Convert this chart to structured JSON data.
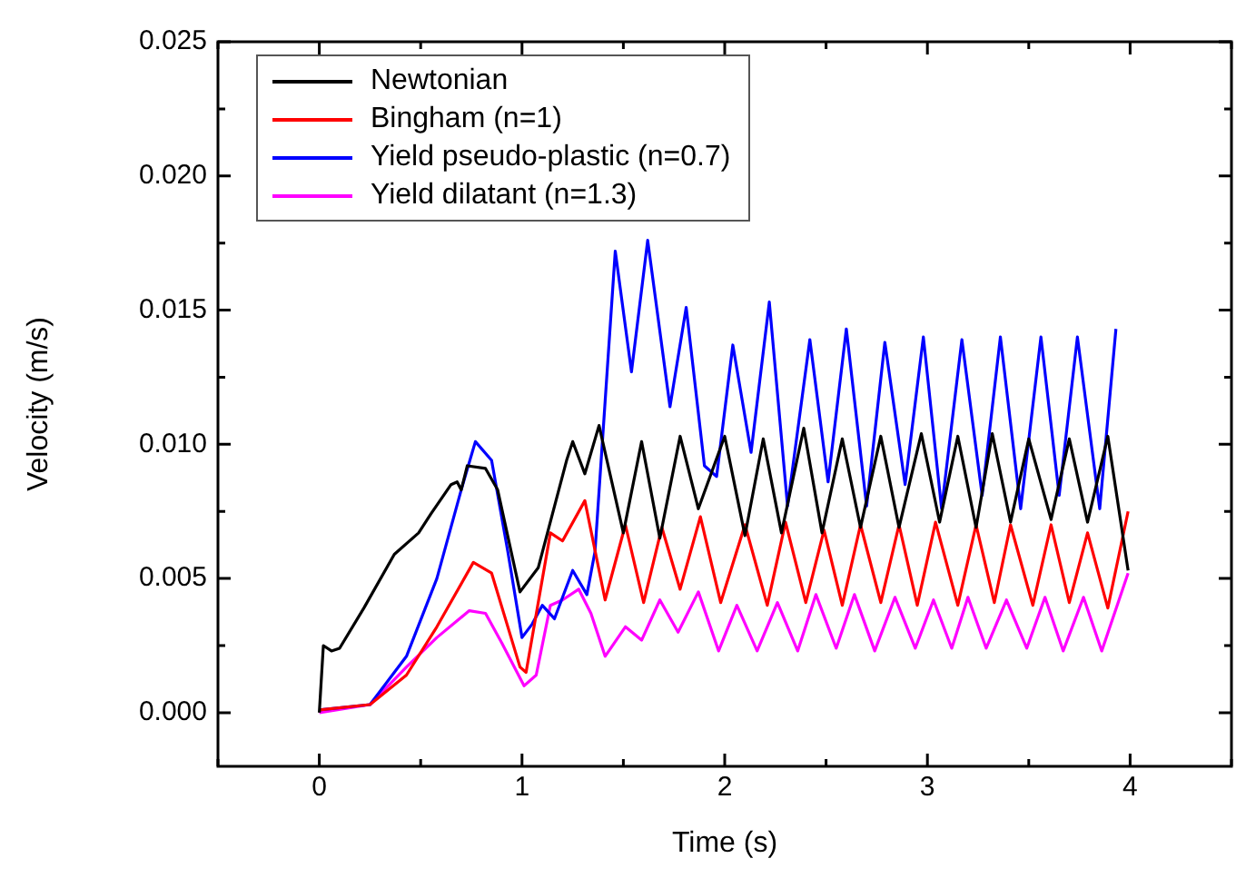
{
  "chart_data": {
    "type": "line",
    "xlabel": "Time (s)",
    "ylabel": "Velocity (m/s)",
    "xlim": [
      -0.5,
      4.5
    ],
    "xticks": [
      {
        "value": -0.5,
        "label": null
      },
      0,
      {
        "value": 0.5,
        "label": null
      },
      1,
      {
        "value": 1.5,
        "label": null
      },
      2,
      {
        "value": 2.5,
        "label": null
      },
      3,
      {
        "value": 3.5,
        "label": null
      },
      4,
      {
        "value": 4.5,
        "label": null
      }
    ],
    "ylim": [
      -0.002,
      0.025
    ],
    "yticks": [
      {
        "value": 0,
        "label": "0.000"
      },
      {
        "value": 0.0025,
        "label": null
      },
      {
        "value": 0.005,
        "label": "0.005"
      },
      {
        "value": 0.0075,
        "label": null
      },
      {
        "value": 0.01,
        "label": "0.010"
      },
      {
        "value": 0.0125,
        "label": null
      },
      {
        "value": 0.015,
        "label": "0.015"
      },
      {
        "value": 0.0175,
        "label": null
      },
      {
        "value": 0.02,
        "label": "0.020"
      },
      {
        "value": 0.0225,
        "label": null
      },
      {
        "value": 0.025,
        "label": "0.025"
      }
    ],
    "grid": false,
    "legend": "top left",
    "marker": "none",
    "line_style": "solid",
    "series": [
      {
        "name": "Newtonian",
        "color": "#000000",
        "x": [
          0,
          0.02,
          0.06,
          0.1,
          0.22,
          0.37,
          0.49,
          0.55,
          0.65,
          0.68,
          0.7,
          0.73,
          0.82,
          0.88,
          0.99,
          1.08,
          1.22,
          1.25,
          1.31,
          1.38,
          1.5,
          1.59,
          1.68,
          1.78,
          1.87,
          2.0,
          2.1,
          2.19,
          2.28,
          2.39,
          2.48,
          2.58,
          2.67,
          2.77,
          2.86,
          2.97,
          3.06,
          3.15,
          3.24,
          3.32,
          3.41,
          3.5,
          3.61,
          3.7,
          3.79,
          3.89,
          3.99
        ],
        "values": [
          0,
          0.0025,
          0.0023,
          0.0024,
          0.0039,
          0.0059,
          0.0067,
          0.0074,
          0.0085,
          0.0086,
          0.0083,
          0.0092,
          0.0091,
          0.0083,
          0.0045,
          0.0054,
          0.0094,
          0.0101,
          0.0089,
          0.0107,
          0.0067,
          0.0101,
          0.0065,
          0.0103,
          0.0076,
          0.0103,
          0.0066,
          0.0102,
          0.0067,
          0.0106,
          0.0067,
          0.0102,
          0.0069,
          0.0103,
          0.0069,
          0.0104,
          0.0071,
          0.0103,
          0.0069,
          0.0104,
          0.0071,
          0.0102,
          0.0072,
          0.0102,
          0.0071,
          0.0103,
          0.0053
        ]
      },
      {
        "name": "Bingham (n=1)",
        "color": "#ff0000",
        "x": [
          0,
          0.25,
          0.43,
          0.58,
          0.76,
          0.85,
          0.99,
          1.02,
          1.14,
          1.2,
          1.31,
          1.41,
          1.51,
          1.6,
          1.69,
          1.78,
          1.88,
          1.98,
          2.1,
          2.21,
          2.3,
          2.4,
          2.49,
          2.58,
          2.67,
          2.77,
          2.86,
          2.95,
          3.04,
          3.15,
          3.24,
          3.33,
          3.41,
          3.52,
          3.61,
          3.7,
          3.79,
          3.89,
          3.99
        ],
        "values": [
          0.0001,
          0.0003,
          0.0014,
          0.0032,
          0.0056,
          0.0052,
          0.0017,
          0.0015,
          0.0067,
          0.0064,
          0.0079,
          0.0042,
          0.007,
          0.0041,
          0.0069,
          0.0046,
          0.0073,
          0.0041,
          0.007,
          0.004,
          0.0071,
          0.0041,
          0.0068,
          0.004,
          0.007,
          0.0041,
          0.007,
          0.004,
          0.0071,
          0.004,
          0.007,
          0.0041,
          0.007,
          0.004,
          0.007,
          0.0041,
          0.0067,
          0.0039,
          0.0075
        ]
      },
      {
        "name": "Yield pseudo-plastic (n=0.7)",
        "color": "#0000ff",
        "x": [
          0,
          0.25,
          0.43,
          0.58,
          0.7,
          0.77,
          0.85,
          0.93,
          1.0,
          1.05,
          1.1,
          1.16,
          1.25,
          1.32,
          1.36,
          1.41,
          1.46,
          1.54,
          1.62,
          1.73,
          1.81,
          1.9,
          1.96,
          2.04,
          2.13,
          2.22,
          2.31,
          2.42,
          2.51,
          2.6,
          2.7,
          2.79,
          2.89,
          2.98,
          3.07,
          3.17,
          3.27,
          3.36,
          3.46,
          3.56,
          3.65,
          3.74,
          3.85,
          3.93
        ],
        "values": [
          0.0001,
          0.0003,
          0.0021,
          0.005,
          0.0083,
          0.0101,
          0.0094,
          0.006,
          0.0028,
          0.0033,
          0.004,
          0.0035,
          0.0053,
          0.0044,
          0.006,
          0.0116,
          0.0172,
          0.0127,
          0.0176,
          0.0114,
          0.0151,
          0.0092,
          0.0088,
          0.0137,
          0.0097,
          0.0153,
          0.0077,
          0.0139,
          0.0086,
          0.0143,
          0.0077,
          0.0138,
          0.0085,
          0.014,
          0.0076,
          0.0139,
          0.0081,
          0.014,
          0.0076,
          0.014,
          0.0081,
          0.014,
          0.0076,
          0.0143
        ]
      },
      {
        "name": "Yield dilatant (n=1.3)",
        "color": "#ff00ff",
        "x": [
          0,
          0.25,
          0.43,
          0.58,
          0.74,
          0.82,
          0.9,
          1.01,
          1.07,
          1.14,
          1.2,
          1.28,
          1.34,
          1.41,
          1.51,
          1.59,
          1.68,
          1.77,
          1.87,
          1.97,
          2.06,
          2.16,
          2.26,
          2.36,
          2.45,
          2.55,
          2.64,
          2.74,
          2.84,
          2.94,
          3.03,
          3.12,
          3.2,
          3.29,
          3.39,
          3.49,
          3.58,
          3.67,
          3.77,
          3.86,
          3.99
        ],
        "values": [
          0,
          0.0003,
          0.0017,
          0.0028,
          0.0038,
          0.0037,
          0.0026,
          0.001,
          0.0014,
          0.004,
          0.0042,
          0.0046,
          0.0037,
          0.0021,
          0.0032,
          0.0027,
          0.0042,
          0.003,
          0.0045,
          0.0023,
          0.004,
          0.0023,
          0.0041,
          0.0023,
          0.0044,
          0.0024,
          0.0044,
          0.0023,
          0.0043,
          0.0024,
          0.0042,
          0.0024,
          0.0043,
          0.0024,
          0.0042,
          0.0024,
          0.0043,
          0.0023,
          0.0043,
          0.0023,
          0.0052
        ]
      }
    ]
  }
}
